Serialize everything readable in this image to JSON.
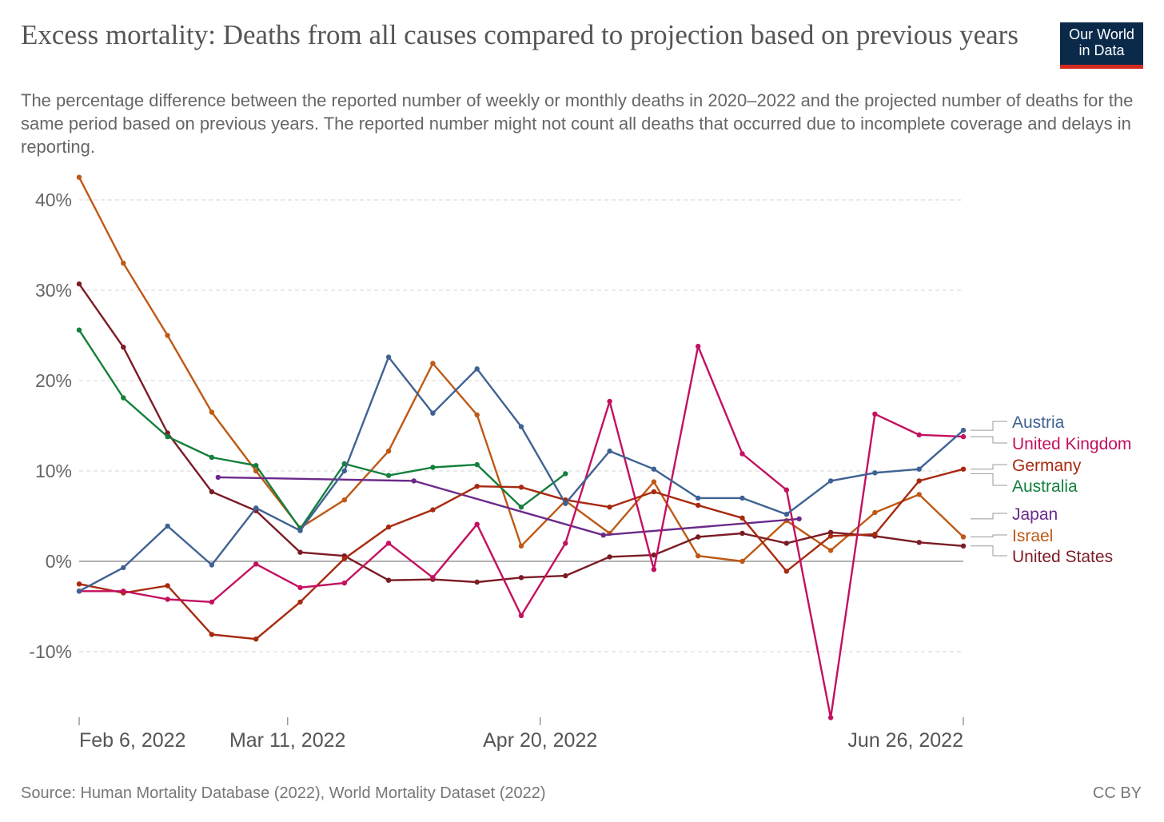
{
  "header": {
    "title": "Excess mortality: Deaths from all causes compared to projection based on previous years",
    "subtitle": "The percentage difference between the reported number of weekly or monthly deaths in 2020–2022 and the projected number of deaths for the same period based on previous years. The reported number might not count all deaths that occurred due to incomplete coverage and delays in reporting.",
    "logo_line1": "Our World",
    "logo_line2": "in Data",
    "logo_colors": {
      "background": "#0b2a4a",
      "accent": "#d42b21"
    }
  },
  "footer": {
    "source": "Source: Human Mortality Database (2022), World Mortality Dataset (2022)",
    "license": "CC BY"
  },
  "chart_data": {
    "type": "line",
    "x_unit": "date",
    "ylim": [
      -16,
      44
    ],
    "xlim": [
      "2022-02-06",
      "2022-06-26"
    ],
    "y_ticks": [
      {
        "value": 40,
        "label": "40%"
      },
      {
        "value": 30,
        "label": "30%"
      },
      {
        "value": 20,
        "label": "20%"
      },
      {
        "value": 10,
        "label": "10%"
      },
      {
        "value": 0,
        "label": "0%"
      },
      {
        "value": -10,
        "label": "-10%"
      }
    ],
    "x_ticks": [
      {
        "value": "2022-02-06",
        "label": "Feb 6, 2022"
      },
      {
        "value": "2022-03-11",
        "label": "Mar 11, 2022"
      },
      {
        "value": "2022-04-20",
        "label": "Apr 20, 2022"
      },
      {
        "value": "2022-06-26",
        "label": "Jun 26, 2022"
      }
    ],
    "grid": "horizontal dashed",
    "legend": "right, labels at line ends",
    "series": [
      {
        "name": "Israel",
        "color": "#be5915",
        "points": [
          [
            "2022-02-06",
            42.5
          ],
          [
            "2022-02-13",
            33
          ],
          [
            "2022-02-20",
            25
          ],
          [
            "2022-02-27",
            16.5
          ],
          [
            "2022-03-06",
            10
          ],
          [
            "2022-03-13",
            3.7
          ],
          [
            "2022-03-20",
            6.8
          ],
          [
            "2022-03-27",
            12.2
          ],
          [
            "2022-04-03",
            21.9
          ],
          [
            "2022-04-10",
            16.2
          ],
          [
            "2022-04-17",
            1.7
          ],
          [
            "2022-04-24",
            6.7
          ],
          [
            "2022-05-01",
            3.1
          ],
          [
            "2022-05-08",
            8.8
          ],
          [
            "2022-05-15",
            0.6
          ],
          [
            "2022-05-22",
            0
          ],
          [
            "2022-05-29",
            4.5
          ],
          [
            "2022-06-05",
            1.2
          ],
          [
            "2022-06-12",
            5.4
          ],
          [
            "2022-06-19",
            7.4
          ],
          [
            "2022-06-26",
            2.7
          ]
        ]
      },
      {
        "name": "United States",
        "color": "#7b1c25",
        "points": [
          [
            "2022-02-06",
            30.7
          ],
          [
            "2022-02-13",
            23.7
          ],
          [
            "2022-02-20",
            14.2
          ],
          [
            "2022-02-27",
            7.7
          ],
          [
            "2022-03-06",
            5.6
          ],
          [
            "2022-03-13",
            1
          ],
          [
            "2022-03-20",
            0.6
          ],
          [
            "2022-03-27",
            -2.1
          ],
          [
            "2022-04-03",
            -2
          ],
          [
            "2022-04-10",
            -2.3
          ],
          [
            "2022-04-17",
            -1.8
          ],
          [
            "2022-04-24",
            -1.6
          ],
          [
            "2022-05-01",
            0.5
          ],
          [
            "2022-05-08",
            0.7
          ],
          [
            "2022-05-15",
            2.7
          ],
          [
            "2022-05-22",
            3.1
          ],
          [
            "2022-05-29",
            2
          ],
          [
            "2022-06-05",
            3.2
          ],
          [
            "2022-06-12",
            2.8
          ],
          [
            "2022-06-19",
            2.1
          ],
          [
            "2022-06-26",
            1.7
          ]
        ]
      },
      {
        "name": "Australia",
        "color": "#13803c",
        "points": [
          [
            "2022-02-06",
            25.6
          ],
          [
            "2022-02-13",
            18.1
          ],
          [
            "2022-02-20",
            13.8
          ],
          [
            "2022-02-27",
            11.5
          ],
          [
            "2022-03-06",
            10.6
          ],
          [
            "2022-03-13",
            3.6
          ],
          [
            "2022-03-20",
            10.8
          ],
          [
            "2022-03-27",
            9.5
          ],
          [
            "2022-04-03",
            10.4
          ],
          [
            "2022-04-10",
            10.7
          ],
          [
            "2022-04-17",
            6
          ],
          [
            "2022-04-24",
            9.7
          ]
        ]
      },
      {
        "name": "Japan",
        "color": "#6b2a8a",
        "points": [
          [
            "2022-02-28",
            9.3
          ],
          [
            "2022-03-31",
            8.9
          ],
          [
            "2022-04-30",
            2.9
          ],
          [
            "2022-05-31",
            4.7
          ]
        ]
      },
      {
        "name": "Germany",
        "color": "#a8290f",
        "points": [
          [
            "2022-02-06",
            -2.5
          ],
          [
            "2022-02-13",
            -3.5
          ],
          [
            "2022-02-20",
            -2.7
          ],
          [
            "2022-02-27",
            -8.1
          ],
          [
            "2022-03-06",
            -8.6
          ],
          [
            "2022-03-13",
            -4.5
          ],
          [
            "2022-03-20",
            0.3
          ],
          [
            "2022-03-27",
            3.8
          ],
          [
            "2022-04-03",
            5.7
          ],
          [
            "2022-04-10",
            8.3
          ],
          [
            "2022-04-17",
            8.2
          ],
          [
            "2022-04-24",
            6.8
          ],
          [
            "2022-05-01",
            6
          ],
          [
            "2022-05-08",
            7.7
          ],
          [
            "2022-05-15",
            6.2
          ],
          [
            "2022-05-22",
            4.8
          ],
          [
            "2022-05-29",
            -1.1
          ],
          [
            "2022-06-05",
            2.8
          ],
          [
            "2022-06-12",
            3
          ],
          [
            "2022-06-19",
            8.9
          ],
          [
            "2022-06-26",
            10.2
          ]
        ]
      },
      {
        "name": "United Kingdom",
        "color": "#c3105f",
        "points": [
          [
            "2022-02-06",
            -3.3
          ],
          [
            "2022-02-13",
            -3.3
          ],
          [
            "2022-02-20",
            -4.2
          ],
          [
            "2022-02-27",
            -4.5
          ],
          [
            "2022-03-06",
            -0.3
          ],
          [
            "2022-03-13",
            -2.9
          ],
          [
            "2022-03-20",
            -2.4
          ],
          [
            "2022-03-27",
            2
          ],
          [
            "2022-04-03",
            -1.8
          ],
          [
            "2022-04-10",
            4.1
          ],
          [
            "2022-04-17",
            -6
          ],
          [
            "2022-04-24",
            2
          ],
          [
            "2022-05-01",
            17.7
          ],
          [
            "2022-05-08",
            -0.9
          ],
          [
            "2022-05-15",
            23.8
          ],
          [
            "2022-05-22",
            11.9
          ],
          [
            "2022-05-29",
            7.9
          ],
          [
            "2022-06-05",
            -17.3
          ],
          [
            "2022-06-12",
            16.3
          ],
          [
            "2022-06-19",
            14
          ],
          [
            "2022-06-26",
            13.8
          ]
        ]
      },
      {
        "name": "Austria",
        "color": "#3f6292",
        "points": [
          [
            "2022-02-06",
            -3.3
          ],
          [
            "2022-02-13",
            -0.7
          ],
          [
            "2022-02-20",
            3.9
          ],
          [
            "2022-02-27",
            -0.4
          ],
          [
            "2022-03-06",
            5.9
          ],
          [
            "2022-03-13",
            3.4
          ],
          [
            "2022-03-20",
            10
          ],
          [
            "2022-03-27",
            22.6
          ],
          [
            "2022-04-03",
            16.4
          ],
          [
            "2022-04-10",
            21.3
          ],
          [
            "2022-04-17",
            14.9
          ],
          [
            "2022-04-24",
            6.4
          ],
          [
            "2022-05-01",
            12.2
          ],
          [
            "2022-05-08",
            10.2
          ],
          [
            "2022-05-15",
            7
          ],
          [
            "2022-05-22",
            7
          ],
          [
            "2022-05-29",
            5.2
          ],
          [
            "2022-06-05",
            8.9
          ],
          [
            "2022-06-12",
            9.8
          ],
          [
            "2022-06-19",
            10.2
          ],
          [
            "2022-06-26",
            14.5
          ]
        ]
      }
    ],
    "legend_labels": [
      {
        "text": "Austria",
        "color": "#3f6292"
      },
      {
        "text": "United Kingdom",
        "color": "#c3105f"
      },
      {
        "text": "Germany",
        "color": "#a8290f"
      },
      {
        "text": "Australia",
        "color": "#13803c"
      },
      {
        "text": "Japan",
        "color": "#6b2a8a"
      },
      {
        "text": "Israel",
        "color": "#be5915"
      },
      {
        "text": "United States",
        "color": "#7b1c25"
      }
    ]
  }
}
